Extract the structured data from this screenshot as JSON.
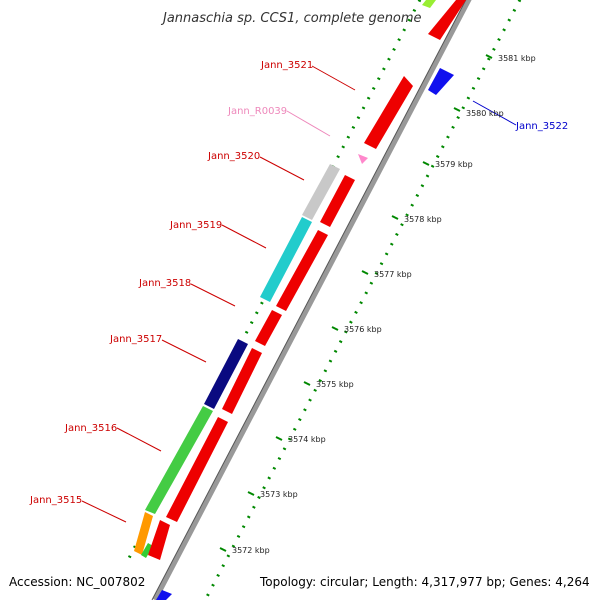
{
  "title": "Jannaschia sp. CCS1, complete genome",
  "footer": {
    "accession": "Accession: NC_007802",
    "topology": "Topology: circular; Length: 4,317,977 bp; Genes: 4,264"
  },
  "colors": {
    "forward_gene": "#ee0000",
    "reverse_gene": "#1010ee",
    "rna_gene": "#ff88cc",
    "label_red": "#cc0000",
    "label_blue": "#0000cc",
    "label_pink": "#ee88bb",
    "backbone": "#888888",
    "tick_dots": "#008800"
  },
  "genes": [
    {
      "id": "Jann_3515",
      "label": "Jann_3515",
      "color": "#cc0000"
    },
    {
      "id": "Jann_3516",
      "label": "Jann_3516",
      "color": "#cc0000"
    },
    {
      "id": "Jann_3517",
      "label": "Jann_3517",
      "color": "#cc0000"
    },
    {
      "id": "Jann_3518",
      "label": "Jann_3518",
      "color": "#cc0000"
    },
    {
      "id": "Jann_3519",
      "label": "Jann_3519",
      "color": "#cc0000"
    },
    {
      "id": "Jann_3520",
      "label": "Jann_3520",
      "color": "#cc0000"
    },
    {
      "id": "Jann_R0039",
      "label": "Jann_R0039",
      "color": "#ee88bb"
    },
    {
      "id": "Jann_3521",
      "label": "Jann_3521",
      "color": "#cc0000"
    },
    {
      "id": "Jann_3522",
      "label": "Jann_3522",
      "color": "#0000cc"
    }
  ],
  "kbp_ticks": [
    "3572 kbp",
    "3573 kbp",
    "3574 kbp",
    "3575 kbp",
    "3576 kbp",
    "3577 kbp",
    "3578 kbp",
    "3579 kbp",
    "3580 kbp",
    "3581 kbp"
  ]
}
